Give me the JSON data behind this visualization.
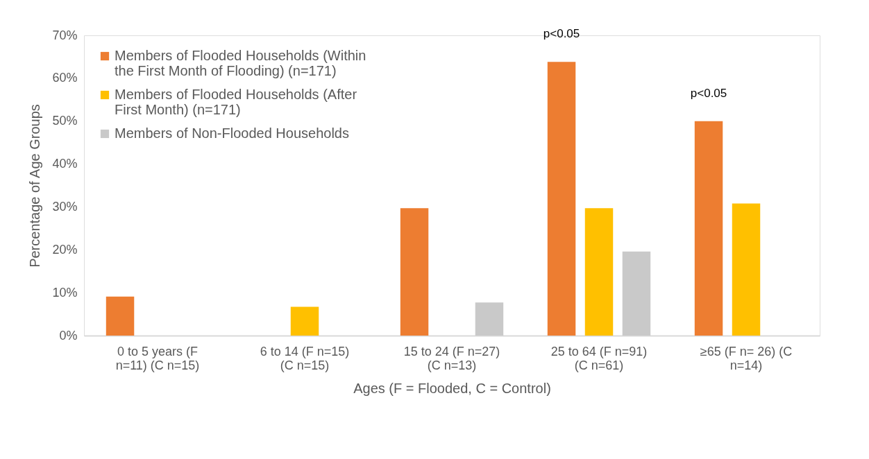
{
  "chart_data": {
    "type": "bar",
    "xlabel": "Ages (F = Flooded, C = Control)",
    "ylabel": "Percentage of Age Groups",
    "categories": [
      "0 to 5 years (F n=11) (C n=15)",
      "6 to 14 (F n=15) (C n=15)",
      "15 to 24 (F n=27) (C n=13)",
      "25 to 64 (F n=91) (C n=61)",
      "≥65 (F n= 26) (C n=14)"
    ],
    "series": [
      {
        "name": "Members of Flooded Households (Within the First Month of Flooding) (n=171)",
        "color": "#ed7d31",
        "values": [
          9.1,
          0,
          29.7,
          63.8,
          50
        ]
      },
      {
        "name": "Members of Flooded Households (After First Month) (n=171)",
        "color": "#ffc000",
        "values": [
          0,
          6.7,
          0,
          29.7,
          30.8
        ]
      },
      {
        "name": "Members of Non-Flooded Households",
        "color": "#c9c9c9",
        "values": [
          0,
          0,
          7.7,
          19.6,
          0
        ]
      }
    ],
    "ylim": [
      0,
      70
    ],
    "yticks": [
      {
        "value": 0,
        "label": "0%"
      },
      {
        "value": 10,
        "label": "10%"
      },
      {
        "value": 20,
        "label": "20%"
      },
      {
        "value": 30,
        "label": "30%"
      },
      {
        "value": 40,
        "label": "40%"
      },
      {
        "value": 50,
        "label": "50%"
      },
      {
        "value": 60,
        "label": "60%"
      },
      {
        "value": 70,
        "label": "70%"
      }
    ],
    "annotations": [
      "p<0.05",
      "p<0.05"
    ],
    "legend": "top left",
    "grid": false
  }
}
